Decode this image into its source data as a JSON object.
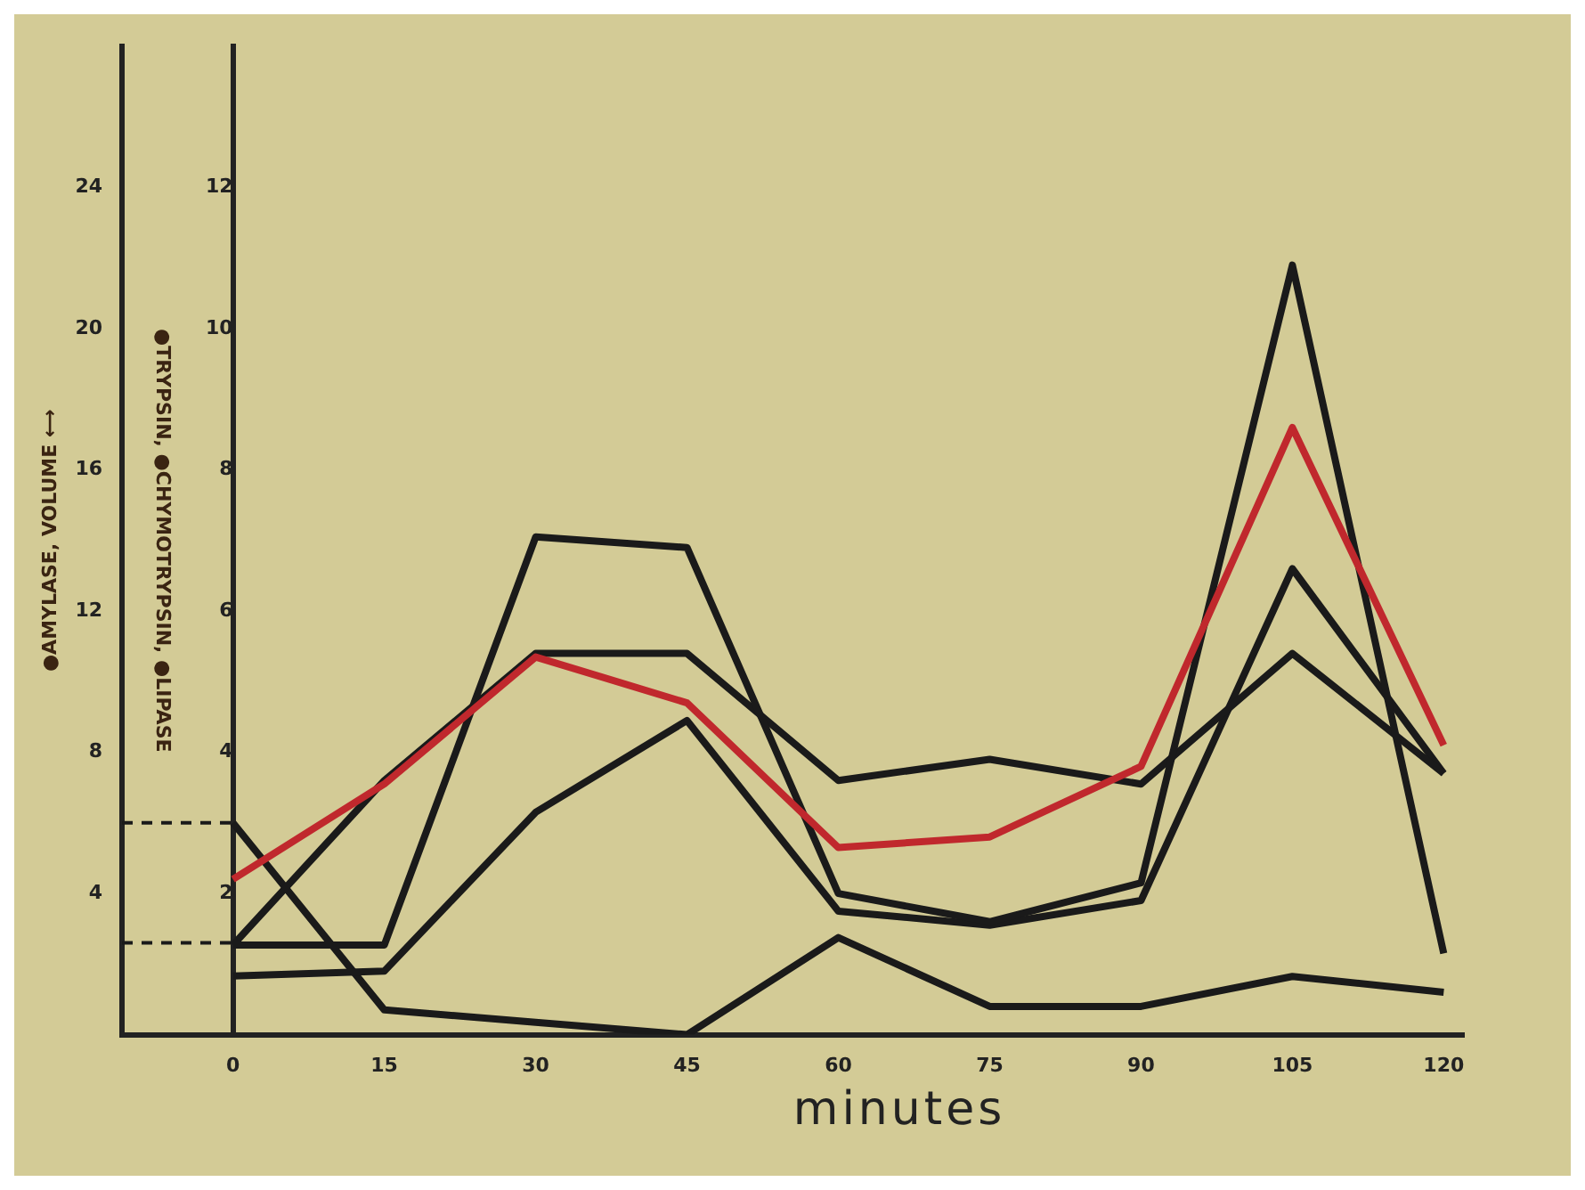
{
  "chart_data": {
    "type": "line",
    "xlabel": "minutes",
    "ylabel": "●TRYPSIN, ●CHYMOTRYPSIN, ●LIPASE",
    "y2label": "●AMYLASE, VOLUME ⟷",
    "x": [
      0,
      15,
      30,
      45,
      60,
      75,
      90,
      105,
      120
    ],
    "series": [
      {
        "color": "#c0282d",
        "values": [
          2.2,
          3.55,
          5.35,
          4.7,
          2.65,
          2.8,
          3.8,
          8.6,
          4.1
        ]
      },
      {
        "color": "#1a1a1a",
        "values": [
          1.27,
          1.27,
          7.05,
          6.9,
          2.0,
          1.6,
          2.15,
          10.9,
          1.15
        ]
      },
      {
        "color": "#1a1a1a",
        "values": [
          1.27,
          3.6,
          5.4,
          5.4,
          3.6,
          3.9,
          3.55,
          5.4,
          3.7
        ]
      },
      {
        "color": "#1a1a1a",
        "values": [
          0.83,
          0.9,
          3.15,
          4.45,
          1.75,
          1.55,
          1.9,
          6.6,
          3.7
        ]
      },
      {
        "color": "#1a1a1a",
        "axis": "y2",
        "values": [
          6,
          0.7,
          0.35,
          0,
          2.75,
          0.8,
          0.8,
          1.65,
          1.2
        ]
      }
    ],
    "xlim": [
      -11,
      122
    ],
    "xticks": [
      0,
      15,
      30,
      45,
      60,
      75,
      90,
      105,
      120
    ],
    "ylim": [
      0,
      14
    ],
    "yticks": [
      2,
      4,
      6,
      8,
      10,
      12
    ],
    "y2lim": [
      0,
      28
    ],
    "y2ticks": [
      4,
      8,
      12,
      16,
      20,
      24
    ],
    "ref_lines": [
      {
        "axis": "y2",
        "value": 6,
        "line_style": "dashed",
        "color": "#1a1a1a"
      },
      {
        "axis": "y2",
        "value": 2.6,
        "line_style": "dashed",
        "color": "#1a1a1a"
      }
    ],
    "grid": false,
    "legend": false
  }
}
